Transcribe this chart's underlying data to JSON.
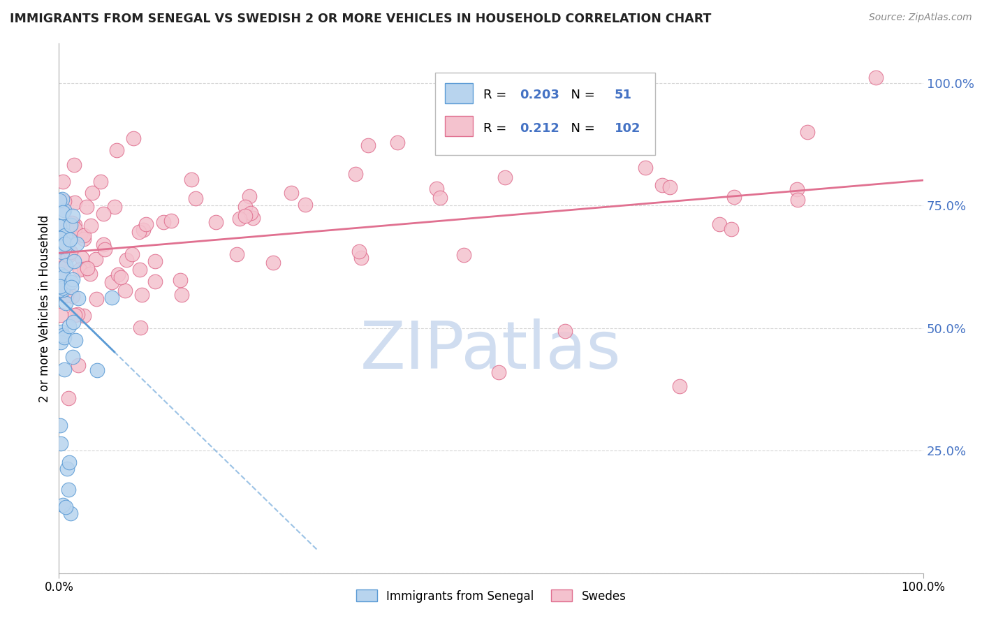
{
  "title": "IMMIGRANTS FROM SENEGAL VS SWEDISH 2 OR MORE VEHICLES IN HOUSEHOLD CORRELATION CHART",
  "source": "Source: ZipAtlas.com",
  "ylabel": "2 or more Vehicles in Household",
  "legend1_label": "Immigrants from Senegal",
  "legend2_label": "Swedes",
  "R1": "0.203",
  "N1": "51",
  "R2": "0.212",
  "N2": "102",
  "blue_fill": "#b8d4ee",
  "blue_edge": "#5b9bd5",
  "pink_fill": "#f4c2ce",
  "pink_edge": "#e07090",
  "blue_line_color": "#5b9bd5",
  "pink_line_color": "#e07090",
  "watermark_color": "#d0ddf0",
  "grid_color": "#cccccc",
  "ytick_color": "#4472c4",
  "title_color": "#222222",
  "source_color": "#888888"
}
